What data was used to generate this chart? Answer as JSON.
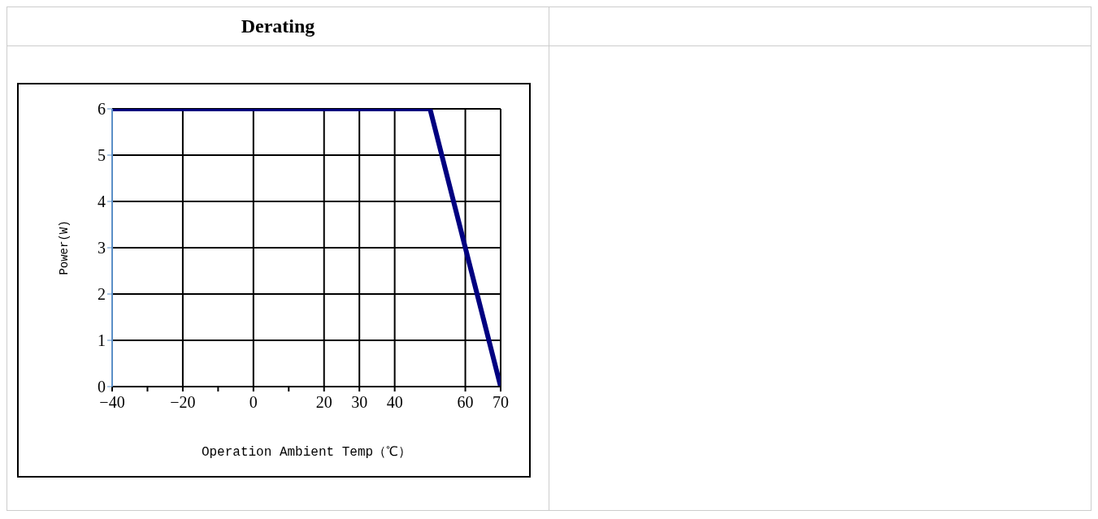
{
  "chart_data": {
    "type": "line",
    "title": "Derating",
    "xlabel": "Operation Ambient Temp（℃）",
    "ylabel": "Power(W)",
    "x": [
      -40,
      50,
      70
    ],
    "series": [
      {
        "color": "#000080",
        "values": [
          6,
          6,
          0
        ]
      }
    ],
    "xlim": [
      -40,
      70
    ],
    "ylim": [
      0,
      6
    ],
    "xticks": [
      -40,
      {
        "value": -30,
        "label": null
      },
      -20,
      {
        "value": -10,
        "label": null
      },
      0,
      {
        "value": 10,
        "label": null
      },
      20,
      30,
      40,
      60,
      70
    ],
    "yticks": [
      0,
      1,
      2,
      3,
      4,
      5,
      6
    ],
    "grid": true,
    "legend": false,
    "marker": "none",
    "line_style": "solid"
  }
}
